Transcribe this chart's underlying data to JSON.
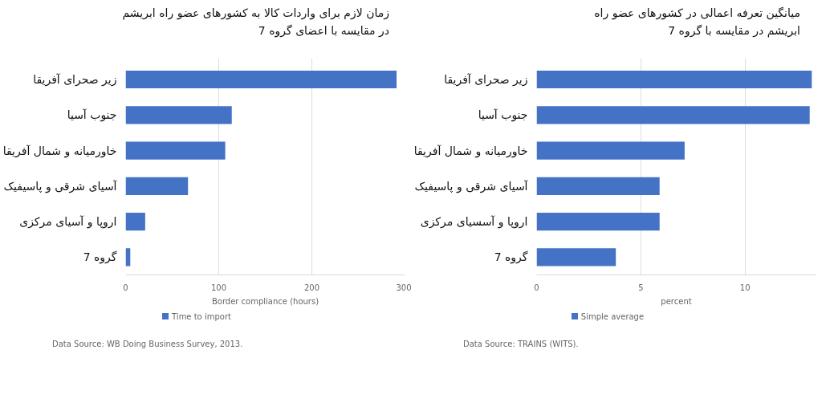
{
  "chart_data": [
    {
      "type": "bar",
      "orientation": "horizontal",
      "title": "زمان لازم برای واردات کالا به کشورهای عضو راه ابریشم\nدر مقایسه با اعضای گروه 7",
      "xlabel": "Border compliance (hours)",
      "categories": [
        "زیر صحرای آفریقا",
        "جنوب آسیا",
        "خاورمیانه و شمال آفریقا",
        "آسیای شرقی و پاسیفیک",
        "اروپا و آسیای مرکزی",
        "گروه 7"
      ],
      "series": [
        {
          "name": "Time to import",
          "color": "#4472c4",
          "values": [
            291,
            114,
            107,
            67,
            21,
            5
          ]
        }
      ],
      "xlim": [
        0,
        300
      ],
      "xticks": [
        0,
        100,
        200,
        300
      ],
      "grid": "x",
      "legend": "bottom",
      "annotations": [
        "Data Source: WB Doing Business Survey, 2013."
      ]
    },
    {
      "type": "bar",
      "orientation": "horizontal",
      "title": "میانگین تعرفه اعمالی در کشورهای عضو راه\nابریشم در مقایسه با گروه 7",
      "xlabel": "percent",
      "categories": [
        "زیر صحرای آفریقا",
        "جنوب آسیا",
        "خاورمیانه و شمال آفریقا",
        "آسیای شرقی و پاسیفیک",
        "اروپا و آسسیای مرکزی",
        "گروه 7"
      ],
      "series": [
        {
          "name": "Simple average",
          "color": "#4472c4",
          "values": [
            13.2,
            13.1,
            7.1,
            5.9,
            5.9,
            3.8
          ]
        }
      ],
      "xlim": [
        0,
        13.4
      ],
      "xticks": [
        0,
        5,
        10
      ],
      "grid": "x",
      "legend": "bottom",
      "annotations": [
        "Data Source: TRAINS (WITS)."
      ]
    }
  ]
}
